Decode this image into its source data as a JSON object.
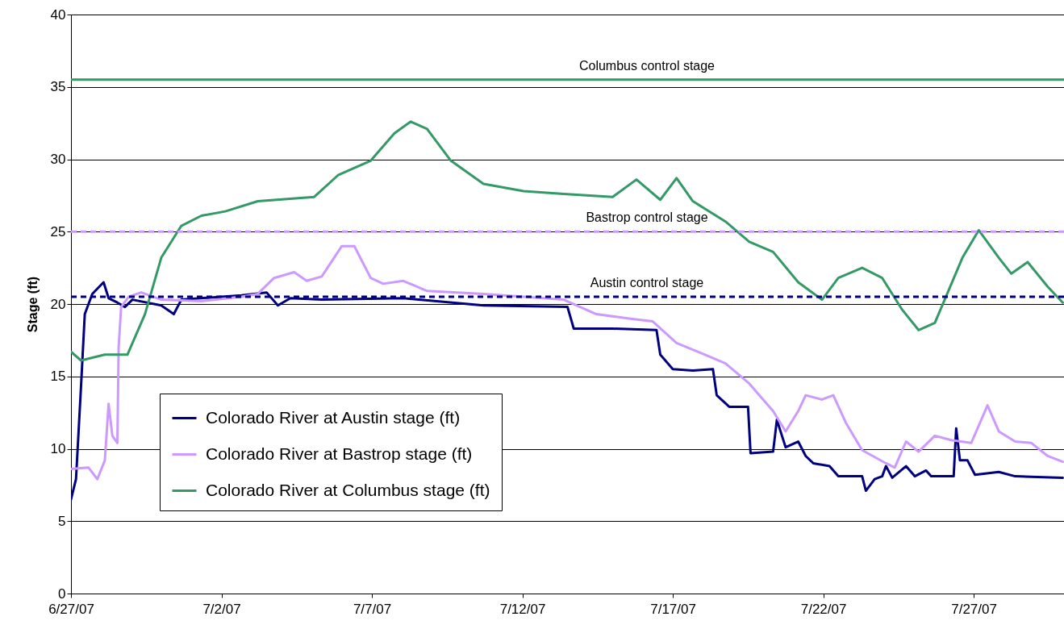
{
  "chart_data": {
    "type": "line",
    "ylabel": "Stage (ft)",
    "xlim": [
      "--06-27",
      "--07-30"
    ],
    "ylim": [
      0,
      40
    ],
    "xticks": [
      {
        "value": "--06-27",
        "label": "6/27/07"
      },
      {
        "value": "--07-02",
        "label": "7/2/07"
      },
      {
        "value": "--07-07",
        "label": "7/7/07"
      },
      {
        "value": "--07-12",
        "label": "7/12/07"
      },
      {
        "value": "--07-17",
        "label": "7/17/07"
      },
      {
        "value": "--07-22",
        "label": "7/22/07"
      },
      {
        "value": "--07-27",
        "label": "7/27/07"
      }
    ],
    "yticks": [
      0,
      5,
      10,
      15,
      20,
      25,
      30,
      35,
      40
    ],
    "grid": "y",
    "legend": "bottom left",
    "line_style": "solid",
    "series": [
      {
        "name": "Colorado River at Austin stage (ft)",
        "color": "#000080",
        "x": [
          "--06-27T00:00",
          "--06-27T04:00",
          "--06-27T08:00",
          "--06-27T11:00",
          "--06-27T17:00",
          "--06-28T02:00",
          "--06-28T06:00",
          "--06-28T13:00",
          "--06-28T19:00",
          "--06-29T01:00",
          "--06-30T00:00",
          "--06-30T10:00",
          "--06-30T16:00",
          "--07-02T16:00",
          "--07-03T12:00",
          "--07-03T21:00",
          "--07-04T07:00",
          "--07-05T08:00",
          "--07-08T01:00",
          "--07-10T17:00",
          "--07-13T12:00",
          "--07-13T17:00",
          "--07-15T00:00",
          "--07-16T11:00",
          "--07-16T14:00",
          "--07-17T00:00",
          "--07-17T16:00",
          "--07-18T08:00",
          "--07-18T11:00",
          "--07-18T21:00",
          "--07-19T12:00",
          "--07-19T14:00",
          "--07-20T08:00",
          "--07-20T11:00",
          "--07-20T18:00",
          "--07-21T04:00",
          "--07-21T10:00",
          "--07-21T16:00",
          "--07-22T05:00",
          "--07-22T12:00",
          "--07-23T07:00",
          "--07-23T10:00",
          "--07-23T17:00",
          "--07-23T23:00",
          "--07-24T02:00",
          "--07-24T07:00",
          "--07-24T18:00",
          "--07-25T01:00",
          "--07-25T10:00",
          "--07-25T14:00",
          "--07-26T08:00",
          "--07-26T10:00",
          "--07-26T13:00",
          "--07-26T19:00",
          "--07-27T01:00",
          "--07-27T20:00",
          "--07-28T09:00",
          "--07-29T23:00"
        ],
        "values": [
          6.5,
          7.9,
          14.3,
          19.3,
          20.7,
          21.5,
          20.4,
          20.1,
          19.8,
          20.3,
          19.9,
          19.3,
          20.3,
          20.6,
          20.8,
          19.9,
          20.4,
          20.3,
          20.4,
          19.9,
          19.8,
          18.3,
          18.3,
          18.2,
          16.5,
          15.5,
          15.4,
          15.5,
          13.7,
          12.9,
          12.9,
          9.7,
          9.8,
          12.0,
          10.1,
          10.5,
          9.5,
          9.0,
          8.8,
          8.1,
          8.1,
          7.1,
          7.9,
          8.1,
          8.8,
          8.0,
          8.8,
          8.1,
          8.5,
          8.1,
          8.1,
          11.4,
          9.2,
          9.2,
          8.2,
          8.4,
          8.1,
          8.0
        ]
      },
      {
        "name": "Colorado River at Bastrop stage (ft)",
        "color": "#cc99ff",
        "x": [
          "--06-27T00:00",
          "--06-27T14:00",
          "--06-27T21:00",
          "--06-28T03:00",
          "--06-28T06:00",
          "--06-28T09:00",
          "--06-28T13:00",
          "--06-28T14:00",
          "--06-28T16:00",
          "--06-28T22:00",
          "--06-29T08:00",
          "--06-30T00:00",
          "--07-01T08:00",
          "--07-02T16:00",
          "--07-03T05:00",
          "--07-03T18:00",
          "--07-04T10:00",
          "--07-04T20:00",
          "--07-05T08:00",
          "--07-06T00:00",
          "--07-06T10:00",
          "--07-06T23:00",
          "--07-07T09:00",
          "--07-08T01:00",
          "--07-08T20:00",
          "--07-10T17:00",
          "--07-13T09:00",
          "--07-14T11:00",
          "--07-15T13:00",
          "--07-16T08:00",
          "--07-17T03:00",
          "--07-17T23:00",
          "--07-18T18:00",
          "--07-19T13:00",
          "--07-20T08:00",
          "--07-20T18:00",
          "--07-21T04:00",
          "--07-21T10:00",
          "--07-21T23:00",
          "--07-22T08:00",
          "--07-22T18:00",
          "--07-23T07:00",
          "--07-24T02:00",
          "--07-24T09:00",
          "--07-24T18:00",
          "--07-25T04:00",
          "--07-25T17:00",
          "--07-26T06:00",
          "--07-26T22:00",
          "--07-27T11:00",
          "--07-27T20:00",
          "--07-28T09:00",
          "--07-28T22:00",
          "--07-29T11:00",
          "--07-29T23:00"
        ],
        "values": [
          8.6,
          8.7,
          7.9,
          9.2,
          13.1,
          10.9,
          10.4,
          17.0,
          19.8,
          20.5,
          20.8,
          20.3,
          20.2,
          20.5,
          20.7,
          21.8,
          22.2,
          21.6,
          21.9,
          24.0,
          24.0,
          21.8,
          21.4,
          21.6,
          20.9,
          20.7,
          20.3,
          19.3,
          19.0,
          18.8,
          17.3,
          16.6,
          15.9,
          14.5,
          12.6,
          11.2,
          12.6,
          13.7,
          13.4,
          13.7,
          11.8,
          9.9,
          9.0,
          8.7,
          10.5,
          9.8,
          10.9,
          10.6,
          10.4,
          13.0,
          11.2,
          10.5,
          10.4,
          9.5,
          9.1
        ]
      },
      {
        "name": "Colorado River at Columbus stage (ft)",
        "color": "#339966",
        "x": [
          "--06-27T00:00",
          "--06-27T08:00",
          "--06-28T03:00",
          "--06-28T21:00",
          "--06-29T11:00",
          "--06-30T00:00",
          "--06-30T16:00",
          "--07-01T08:00",
          "--07-02T03:00",
          "--07-03T05:00",
          "--07-05T02:00",
          "--07-05T21:00",
          "--07-06T23:00",
          "--07-07T18:00",
          "--07-08T07:00",
          "--07-08T20:00",
          "--07-09T15:00",
          "--07-10T17:00",
          "--07-12T01:00",
          "--07-13T09:00",
          "--07-15T00:00",
          "--07-15T19:00",
          "--07-16T14:00",
          "--07-17T03:00",
          "--07-17T16:00",
          "--07-18T18:00",
          "--07-19T13:00",
          "--07-20T08:00",
          "--07-21T04:00",
          "--07-21T23:00",
          "--07-22T12:00",
          "--07-23T07:00",
          "--07-23T23:00",
          "--07-24T15:00",
          "--07-25T04:00",
          "--07-25T17:00",
          "--07-26T15:00",
          "--07-27T04:00",
          "--07-27T20:00",
          "--07-28T06:00",
          "--07-28T19:00",
          "--07-29T11:00",
          "--07-29T23:00"
        ],
        "values": [
          16.7,
          16.1,
          16.5,
          16.5,
          19.3,
          23.2,
          25.4,
          26.1,
          26.4,
          27.1,
          27.4,
          28.9,
          29.9,
          31.8,
          32.6,
          32.1,
          29.9,
          28.3,
          27.8,
          27.6,
          27.4,
          28.6,
          27.2,
          28.7,
          27.1,
          25.7,
          24.3,
          23.6,
          21.5,
          20.3,
          21.8,
          22.5,
          21.8,
          19.6,
          18.2,
          18.7,
          23.2,
          25.1,
          23.2,
          22.1,
          22.9,
          21.2,
          20.1
        ]
      }
    ],
    "ref_lines": [
      {
        "axis": "y",
        "value": 35.5,
        "label": "Columbus control stage",
        "color": "#339966",
        "line_style": "solid"
      },
      {
        "axis": "y",
        "value": 25.0,
        "label": "Bastrop control stage",
        "color": "#cc99ff",
        "line_style": "dashed"
      },
      {
        "axis": "y",
        "value": 20.5,
        "label": "Austin control stage",
        "color": "#000080",
        "line_style": "dashed"
      }
    ]
  }
}
